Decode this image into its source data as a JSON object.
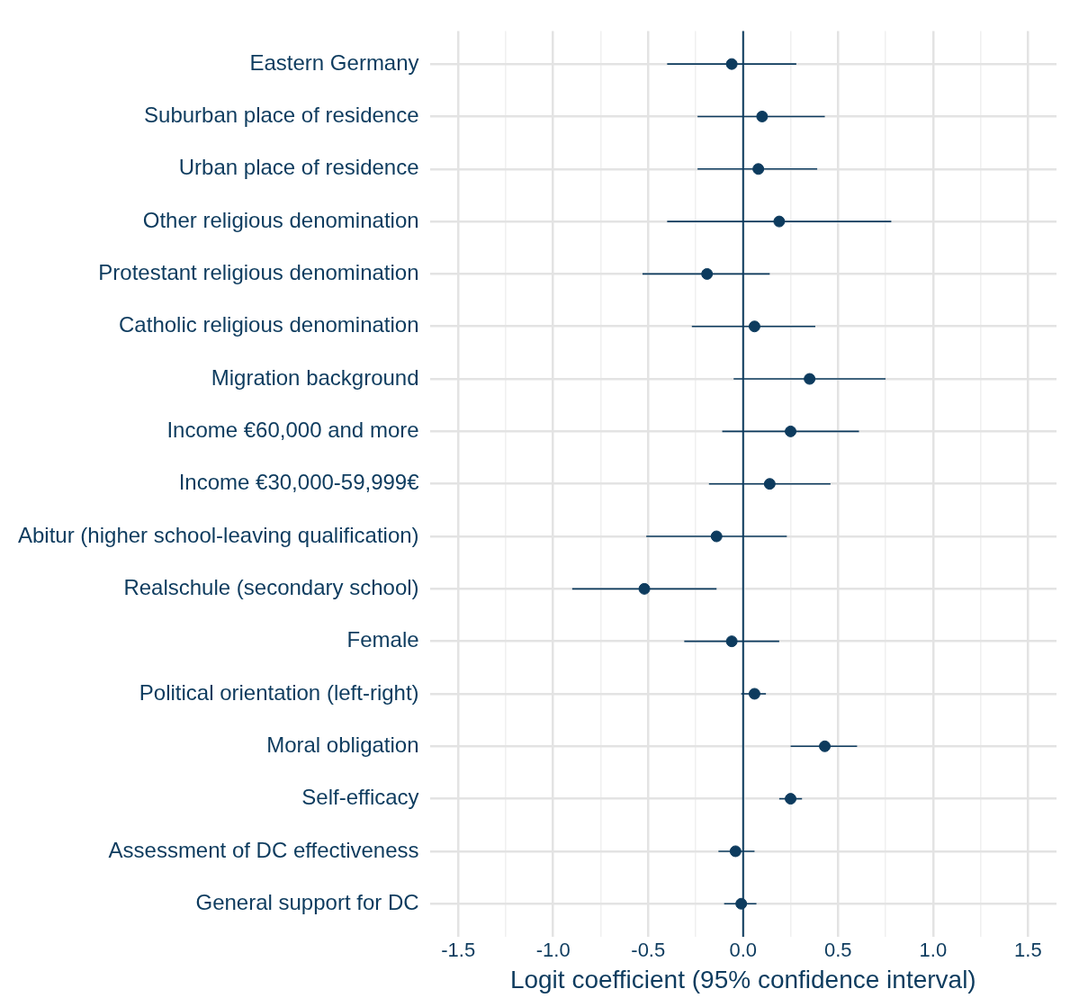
{
  "chart_data": {
    "type": "scatter",
    "orientation": "horizontal",
    "xlabel": "Logit coefficient (95% confidence interval)",
    "categories": [
      "Eastern Germany",
      "Suburban place of residence",
      "Urban place of residence",
      "Other religious denomination",
      "Protestant religious denomination",
      "Catholic religious denomination",
      "Migration background",
      "Income €60,000 and more",
      "Income €30,000-59,999€",
      "Abitur (higher school-leaving qualification)",
      "Realschule (secondary school)",
      "Female",
      "Political orientation (left-right)",
      "Moral obligation",
      "Self-efficacy",
      "Assessment of DC effectiveness",
      "General support for DC"
    ],
    "values": [
      -0.06,
      0.1,
      0.08,
      0.19,
      -0.19,
      0.06,
      0.35,
      0.25,
      0.14,
      -0.14,
      -0.52,
      -0.06,
      0.06,
      0.43,
      0.25,
      -0.04,
      -0.01
    ],
    "errors": [
      [
        -0.4,
        0.28
      ],
      [
        -0.24,
        0.43
      ],
      [
        -0.24,
        0.39
      ],
      [
        -0.4,
        0.78
      ],
      [
        -0.53,
        0.14
      ],
      [
        -0.27,
        0.38
      ],
      [
        -0.05,
        0.75
      ],
      [
        -0.11,
        0.61
      ],
      [
        -0.18,
        0.46
      ],
      [
        -0.51,
        0.23
      ],
      [
        -0.9,
        -0.14
      ],
      [
        -0.31,
        0.19
      ],
      [
        -0.01,
        0.12
      ],
      [
        0.25,
        0.6
      ],
      [
        0.19,
        0.31
      ],
      [
        -0.13,
        0.06
      ],
      [
        -0.1,
        0.07
      ]
    ],
    "color": "#0d3b5e",
    "marker": "circle",
    "grid": true,
    "legend": false,
    "xlim": [
      -1.65,
      1.65
    ],
    "xticks": [
      -1.5,
      {
        "value": -1.25,
        "label": null
      },
      {
        "value": -1.0,
        "label": "-1.0"
      },
      {
        "value": -0.75,
        "label": null
      },
      -0.5,
      {
        "value": -0.25,
        "label": null
      },
      {
        "value": 0,
        "label": "0.0"
      },
      {
        "value": 0.25,
        "label": null
      },
      0.5,
      {
        "value": 0.75,
        "label": null
      },
      {
        "value": 1.0,
        "label": "1.0"
      },
      {
        "value": 1.25,
        "label": null
      },
      1.5
    ],
    "ref_lines": [
      {
        "axis": "x",
        "value": 0,
        "color": "#0d3b5e"
      }
    ]
  }
}
